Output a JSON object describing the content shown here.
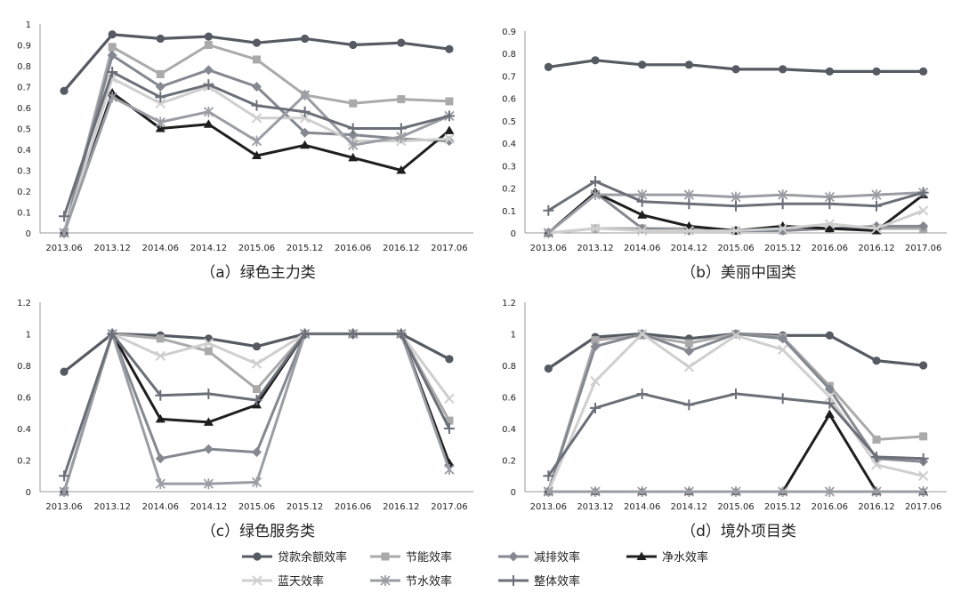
{
  "chart_data": [
    {
      "type": "line",
      "caption": "（a）绿色主力类",
      "x": [
        "2013.06",
        "2013.12",
        "2014.06",
        "2014.12",
        "2015.06",
        "2015.12",
        "2016.06",
        "2016.12",
        "2017.06"
      ],
      "ylim": [
        0,
        1
      ],
      "yticks": [
        0,
        0.1,
        0.2,
        0.3,
        0.4,
        0.5,
        0.6,
        0.7,
        0.8,
        0.9,
        1
      ],
      "ytick_labels": [
        "0",
        "0.1",
        "0.2",
        "0.3",
        "0.4",
        "0.5",
        "0.6",
        "0.7",
        "0.8",
        "0.9",
        "1"
      ],
      "grid": false,
      "series": [
        {
          "name": "贷款余额效率",
          "values": [
            0.68,
            0.95,
            0.93,
            0.94,
            0.91,
            0.93,
            0.9,
            0.91,
            0.88
          ]
        },
        {
          "name": "节能效率",
          "values": [
            0.0,
            0.89,
            0.76,
            0.9,
            0.83,
            0.66,
            0.62,
            0.64,
            0.63
          ]
        },
        {
          "name": "减排效率",
          "values": [
            0.0,
            0.85,
            0.7,
            0.78,
            0.7,
            0.48,
            0.47,
            0.45,
            0.44
          ]
        },
        {
          "name": "净水效率",
          "values": [
            0.0,
            0.67,
            0.5,
            0.52,
            0.37,
            0.42,
            0.36,
            0.3,
            0.49
          ]
        },
        {
          "name": "蓝天效率",
          "values": [
            0.0,
            0.74,
            0.62,
            0.7,
            0.55,
            0.55,
            0.44,
            0.44,
            0.45
          ]
        },
        {
          "name": "节水效率",
          "values": [
            0.0,
            0.65,
            0.53,
            0.58,
            0.44,
            0.66,
            0.42,
            0.46,
            0.56
          ]
        },
        {
          "name": "整体效率",
          "values": [
            0.08,
            0.77,
            0.65,
            0.71,
            0.61,
            0.58,
            0.5,
            0.5,
            0.56
          ]
        }
      ]
    },
    {
      "type": "line",
      "caption": "（b）美丽中国类",
      "x": [
        "2013.06",
        "2013.12",
        "2014.06",
        "2014.12",
        "2015.06",
        "2015.12",
        "2016.06",
        "2016.12",
        "2017.06"
      ],
      "ylim": [
        0,
        0.9
      ],
      "yticks": [
        0,
        0.1,
        0.2,
        0.3,
        0.4,
        0.5,
        0.6,
        0.7,
        0.8,
        0.9
      ],
      "ytick_labels": [
        "0",
        "0.1",
        "0.2",
        "0.3",
        "0.4",
        "0.5",
        "0.6",
        "0.7",
        "0.8",
        "0.9"
      ],
      "grid": false,
      "series": [
        {
          "name": "贷款余额效率",
          "values": [
            0.74,
            0.77,
            0.75,
            0.75,
            0.73,
            0.73,
            0.72,
            0.72,
            0.72
          ]
        },
        {
          "name": "节能效率",
          "values": [
            0.0,
            0.02,
            0.02,
            0.02,
            0.01,
            0.01,
            0.02,
            0.02,
            0.02
          ]
        },
        {
          "name": "减排效率",
          "values": [
            0.0,
            0.18,
            0.02,
            0.01,
            0.01,
            0.01,
            0.02,
            0.03,
            0.03
          ]
        },
        {
          "name": "净水效率",
          "values": [
            0.0,
            0.18,
            0.08,
            0.03,
            0.01,
            0.03,
            0.02,
            0.01,
            0.17
          ]
        },
        {
          "name": "蓝天效率",
          "values": [
            0.0,
            0.02,
            0.01,
            0.01,
            0.01,
            0.02,
            0.04,
            0.02,
            0.1
          ]
        },
        {
          "name": "节水效率",
          "values": [
            0.0,
            0.17,
            0.17,
            0.17,
            0.16,
            0.17,
            0.16,
            0.17,
            0.18
          ]
        },
        {
          "name": "整体效率",
          "values": [
            0.1,
            0.23,
            0.14,
            0.13,
            0.12,
            0.13,
            0.13,
            0.12,
            0.18
          ]
        }
      ]
    },
    {
      "type": "line",
      "caption": "（c）绿色服务类",
      "x": [
        "2013.06",
        "2013.12",
        "2014.06",
        "2014.12",
        "2015.06",
        "2015.12",
        "2016.06",
        "2016.12",
        "2017.06"
      ],
      "ylim": [
        0,
        1.2
      ],
      "yticks": [
        0,
        0.2,
        0.4,
        0.6,
        0.8,
        1,
        1.2
      ],
      "ytick_labels": [
        "0",
        "0.2",
        "0.4",
        "0.6",
        "0.8",
        "1",
        "1.2"
      ],
      "grid": false,
      "series": [
        {
          "name": "贷款余额效率",
          "values": [
            0.76,
            1.0,
            0.99,
            0.97,
            0.92,
            1.0,
            1.0,
            1.0,
            0.84
          ]
        },
        {
          "name": "节能效率",
          "values": [
            0.0,
            1.0,
            0.97,
            0.89,
            0.65,
            1.0,
            1.0,
            1.0,
            0.45
          ]
        },
        {
          "name": "减排效率",
          "values": [
            0.0,
            1.0,
            0.21,
            0.27,
            0.25,
            1.0,
            1.0,
            1.0,
            0.17
          ]
        },
        {
          "name": "净水效率",
          "values": [
            0.0,
            1.0,
            0.46,
            0.44,
            0.55,
            1.0,
            1.0,
            1.0,
            0.18
          ]
        },
        {
          "name": "蓝天效率",
          "values": [
            0.0,
            1.0,
            0.86,
            0.94,
            0.81,
            1.0,
            1.0,
            1.0,
            0.59
          ]
        },
        {
          "name": "节水效率",
          "values": [
            0.0,
            1.0,
            0.05,
            0.05,
            0.06,
            1.0,
            1.0,
            1.0,
            0.14
          ]
        },
        {
          "name": "整体效率",
          "values": [
            0.1,
            1.0,
            0.61,
            0.62,
            0.58,
            1.0,
            1.0,
            1.0,
            0.4
          ]
        }
      ]
    },
    {
      "type": "line",
      "caption": "（d）境外项目类",
      "x": [
        "2013.06",
        "2013.12",
        "2014.06",
        "2014.12",
        "2015.06",
        "2015.12",
        "2016.06",
        "2016.12",
        "2017.06"
      ],
      "ylim": [
        0,
        1.2
      ],
      "yticks": [
        0,
        0.2,
        0.4,
        0.6,
        0.8,
        1,
        1.2
      ],
      "ytick_labels": [
        "0",
        "0.2",
        "0.4",
        "0.6",
        "0.8",
        "1",
        "1.2"
      ],
      "grid": false,
      "series": [
        {
          "name": "贷款余额效率",
          "values": [
            0.78,
            0.98,
            1.0,
            0.97,
            1.0,
            0.99,
            0.99,
            0.83,
            0.8
          ]
        },
        {
          "name": "节能效率",
          "values": [
            0.0,
            0.96,
            0.99,
            0.94,
            1.0,
            0.98,
            0.67,
            0.33,
            0.35
          ]
        },
        {
          "name": "减排效率",
          "values": [
            0.0,
            0.92,
            1.0,
            0.89,
            1.0,
            0.97,
            0.65,
            0.21,
            0.19
          ]
        },
        {
          "name": "净水效率",
          "values": [
            0.0,
            0.0,
            0.0,
            0.0,
            0.0,
            0.0,
            0.49,
            0.0,
            0.0
          ]
        },
        {
          "name": "蓝天效率",
          "values": [
            0.0,
            0.7,
            1.0,
            0.79,
            0.99,
            0.9,
            0.6,
            0.17,
            0.1
          ]
        },
        {
          "name": "节水效率",
          "values": [
            0.0,
            0.0,
            0.0,
            0.0,
            0.0,
            0.0,
            0.0,
            0.0,
            0.0
          ]
        },
        {
          "name": "整体效率",
          "values": [
            0.1,
            0.53,
            0.62,
            0.55,
            0.62,
            0.59,
            0.56,
            0.22,
            0.21
          ]
        }
      ]
    }
  ],
  "legend": {
    "placement": "bottom-center",
    "items": [
      {
        "label": "贷款余额效率",
        "color": "#555a63",
        "marker": "circle"
      },
      {
        "label": "节能效率",
        "color": "#aaaaaa",
        "marker": "square"
      },
      {
        "label": "减排效率",
        "color": "#848890",
        "marker": "diamond"
      },
      {
        "label": "净水效率",
        "color": "#1e1e1e",
        "marker": "triangle"
      },
      {
        "label": "蓝天效率",
        "color": "#cfcfcf",
        "marker": "x"
      },
      {
        "label": "节水效率",
        "color": "#9a9ea4",
        "marker": "star"
      },
      {
        "label": "整体效率",
        "color": "#6a6f78",
        "marker": "plus"
      }
    ]
  }
}
